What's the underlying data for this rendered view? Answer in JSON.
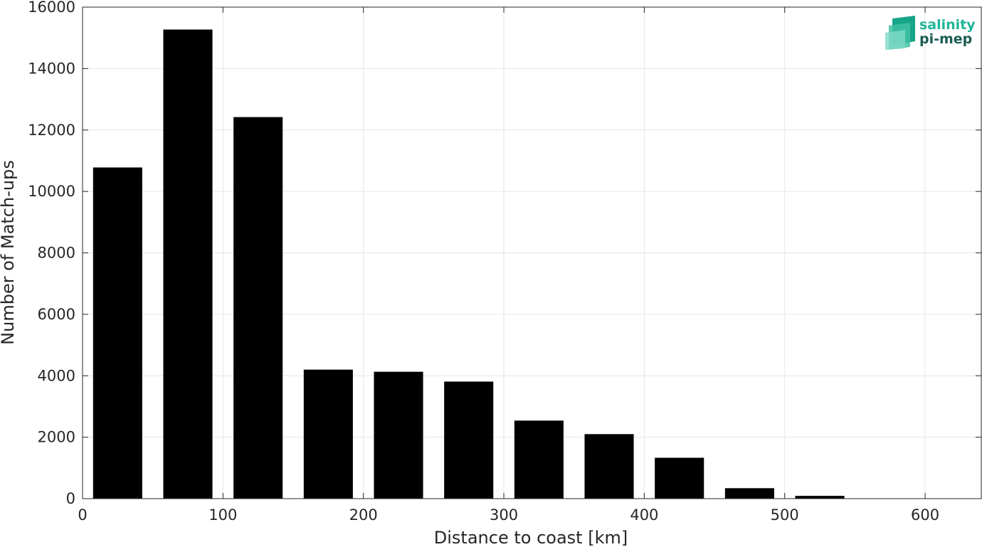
{
  "chart_data": {
    "type": "bar",
    "x": [
      25,
      75,
      125,
      175,
      225,
      275,
      325,
      375,
      425,
      475,
      525
    ],
    "values": [
      10780,
      15270,
      12420,
      4200,
      4130,
      3810,
      2540,
      2100,
      1330,
      340,
      90
    ],
    "bar_width": 35,
    "xlabel": "Distance to coast [km]",
    "ylabel": "Number of Match-ups",
    "xlim": [
      0,
      640
    ],
    "ylim": [
      0,
      16000
    ],
    "xticks": [
      0,
      100,
      200,
      300,
      400,
      500,
      600
    ],
    "yticks": [
      0,
      2000,
      4000,
      6000,
      8000,
      10000,
      12000,
      14000,
      16000
    ],
    "grid": true,
    "bar_color": "#000000",
    "grid_color": "#e6e6e6",
    "axis_color": "#262626"
  },
  "logo": {
    "line1": "salinity",
    "line2": "pi-mep",
    "color1": "#1fb598",
    "color2": "#1a5c52"
  }
}
